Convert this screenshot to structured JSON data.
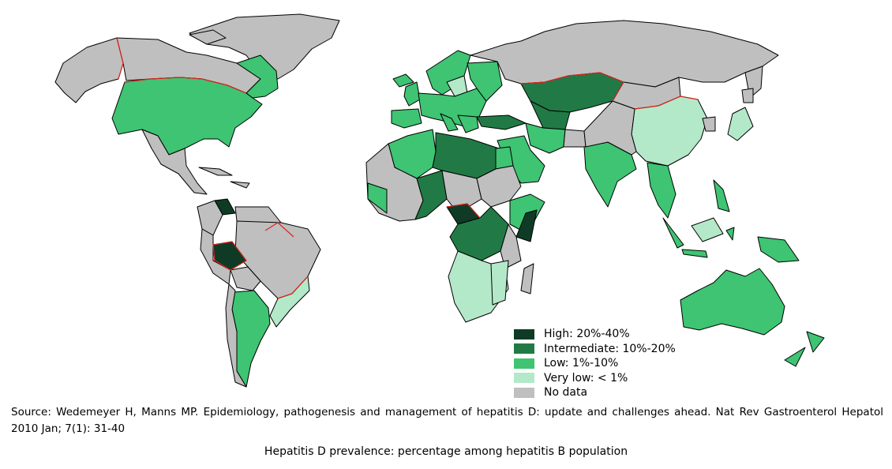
{
  "colors": {
    "high": "#0f3b26",
    "intermediate": "#217a45",
    "low": "#3ec472",
    "very_low": "#b3e9c9",
    "no_data": "#bfbfbf",
    "border": "#000000",
    "highlight_border": "#e0221d"
  },
  "legend": {
    "items": [
      {
        "key": "high",
        "label": "High: 20%-40%"
      },
      {
        "key": "intermediate",
        "label": "Intermediate: 10%-20%"
      },
      {
        "key": "low",
        "label": "Low: 1%-10%"
      },
      {
        "key": "very_low",
        "label": "Very low: < 1%"
      },
      {
        "key": "no_data",
        "label": "No data"
      }
    ]
  },
  "source_text": "Source: Wedemeyer H, Manns MP. Epidemiology, pathogenesis and management of hepatitis D: update and challenges ahead. Nat Rev Gastroenterol Hepatol 2010 Jan; 7(1): 31-40",
  "caption": "Hepatitis D prevalence: percentage among hepatitis B population"
}
